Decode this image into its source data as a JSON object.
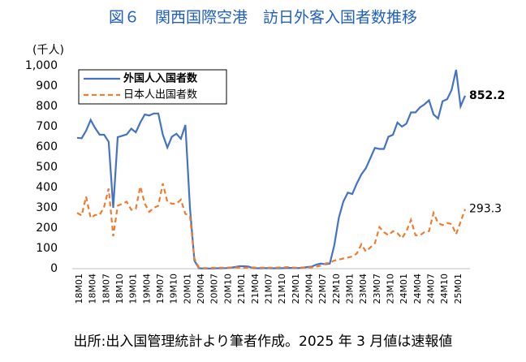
{
  "chart_data": {
    "type": "line",
    "title": "図６　関西国際空港　訪日外客入国者数推移",
    "y_axis_label": "(千人)",
    "note": "出所:出入国管理統計より筆者作成。2025 年 3 月値は速報値",
    "categories": [
      "18M01",
      null,
      null,
      "18M04",
      null,
      null,
      "18M07",
      null,
      null,
      "18M10",
      null,
      null,
      "19M01",
      null,
      null,
      "19M04",
      null,
      null,
      "19M07",
      null,
      null,
      "19M10",
      null,
      null,
      "20M01",
      null,
      null,
      "20M04",
      null,
      null,
      "20M07",
      null,
      null,
      "20M10",
      null,
      null,
      "21M01",
      null,
      null,
      "21M04",
      null,
      null,
      "21M07",
      null,
      null,
      "21M10",
      null,
      null,
      "22M01",
      null,
      null,
      "22M04",
      null,
      null,
      "22M07",
      null,
      null,
      "22M10",
      null,
      null,
      "23M01",
      null,
      null,
      "23M04",
      null,
      null,
      "23M07",
      null,
      null,
      "23M10",
      null,
      null,
      "24M01",
      null,
      null,
      "24M04",
      null,
      null,
      "24M07",
      null,
      null,
      "24M10",
      null,
      null,
      "25M01",
      null,
      null
    ],
    "series": [
      {
        "name": "外国人入国者数",
        "color": "#4472c4",
        "dash": false,
        "values": [
          645,
          643,
          680,
          733,
          693,
          660,
          660,
          625,
          300,
          648,
          655,
          662,
          690,
          672,
          720,
          760,
          755,
          765,
          765,
          660,
          597,
          650,
          665,
          640,
          708,
          300,
          40,
          2,
          1,
          1,
          1,
          2,
          2,
          3,
          5,
          8,
          12,
          12,
          10,
          3,
          2,
          2,
          3,
          2,
          2,
          2,
          3,
          4,
          3,
          3,
          5,
          8,
          10,
          20,
          25,
          22,
          25,
          115,
          250,
          330,
          375,
          368,
          420,
          465,
          495,
          545,
          595,
          590,
          590,
          650,
          660,
          720,
          700,
          715,
          770,
          770,
          795,
          810,
          830,
          760,
          740,
          825,
          835,
          880,
          980,
          800,
          852.2
        ]
      },
      {
        "name": "日本人出国者数",
        "color": "#ed7d31",
        "dash": true,
        "values": [
          275,
          262,
          355,
          250,
          265,
          265,
          305,
          395,
          160,
          310,
          320,
          330,
          290,
          295,
          405,
          320,
          280,
          300,
          310,
          420,
          330,
          320,
          320,
          340,
          270,
          260,
          50,
          5,
          3,
          3,
          4,
          5,
          5,
          5,
          6,
          6,
          5,
          4,
          5,
          6,
          5,
          5,
          5,
          5,
          5,
          6,
          7,
          8,
          5,
          5,
          6,
          6,
          6,
          10,
          15,
          25,
          30,
          40,
          45,
          50,
          55,
          60,
          75,
          120,
          85,
          105,
          125,
          205,
          180,
          165,
          185,
          175,
          150,
          185,
          240,
          165,
          165,
          180,
          185,
          275,
          225,
          215,
          225,
          220,
          170,
          230,
          293.3
        ]
      }
    ],
    "ylim": [
      0,
      1000
    ],
    "yticks": [
      0,
      100,
      200,
      300,
      400,
      500,
      600,
      700,
      800,
      900,
      {
        "value": 1000,
        "label": "1,000"
      }
    ],
    "grid": false,
    "legend": "top-left"
  }
}
